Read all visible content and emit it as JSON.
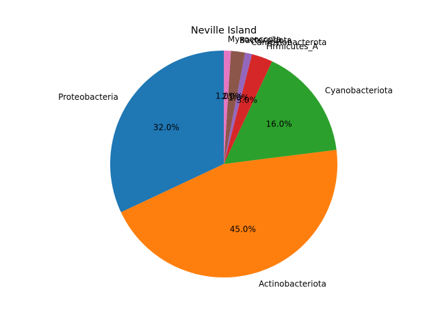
{
  "chart_data": {
    "type": "pie",
    "title": "Neville Island",
    "start_angle_deg": 90,
    "direction": "counterclockwise",
    "slices": [
      {
        "label": "Proteobacteria",
        "value": 32.0,
        "pct_text": "32.0%",
        "color": "#1f77b4"
      },
      {
        "label": "Actinobacteriota",
        "value": 45.0,
        "pct_text": "45.0%",
        "color": "#ff7f0e"
      },
      {
        "label": "Cyanobacteriota",
        "value": 16.0,
        "pct_text": "16.0%",
        "color": "#2ca02c"
      },
      {
        "label": "Firmicutes_A",
        "value": 3.0,
        "pct_text": "3.0%",
        "color": "#d62728"
      },
      {
        "label": "Campylobacterota",
        "value": 1.0,
        "pct_text": "1.0%",
        "color": "#9467bd"
      },
      {
        "label": "Bacteroidota",
        "value": 2.0,
        "pct_text": "2.0%",
        "color": "#8c564b"
      },
      {
        "label": "Myxococcota",
        "value": 1.0,
        "pct_text": "1.0%",
        "color": "#e377c2"
      }
    ]
  }
}
